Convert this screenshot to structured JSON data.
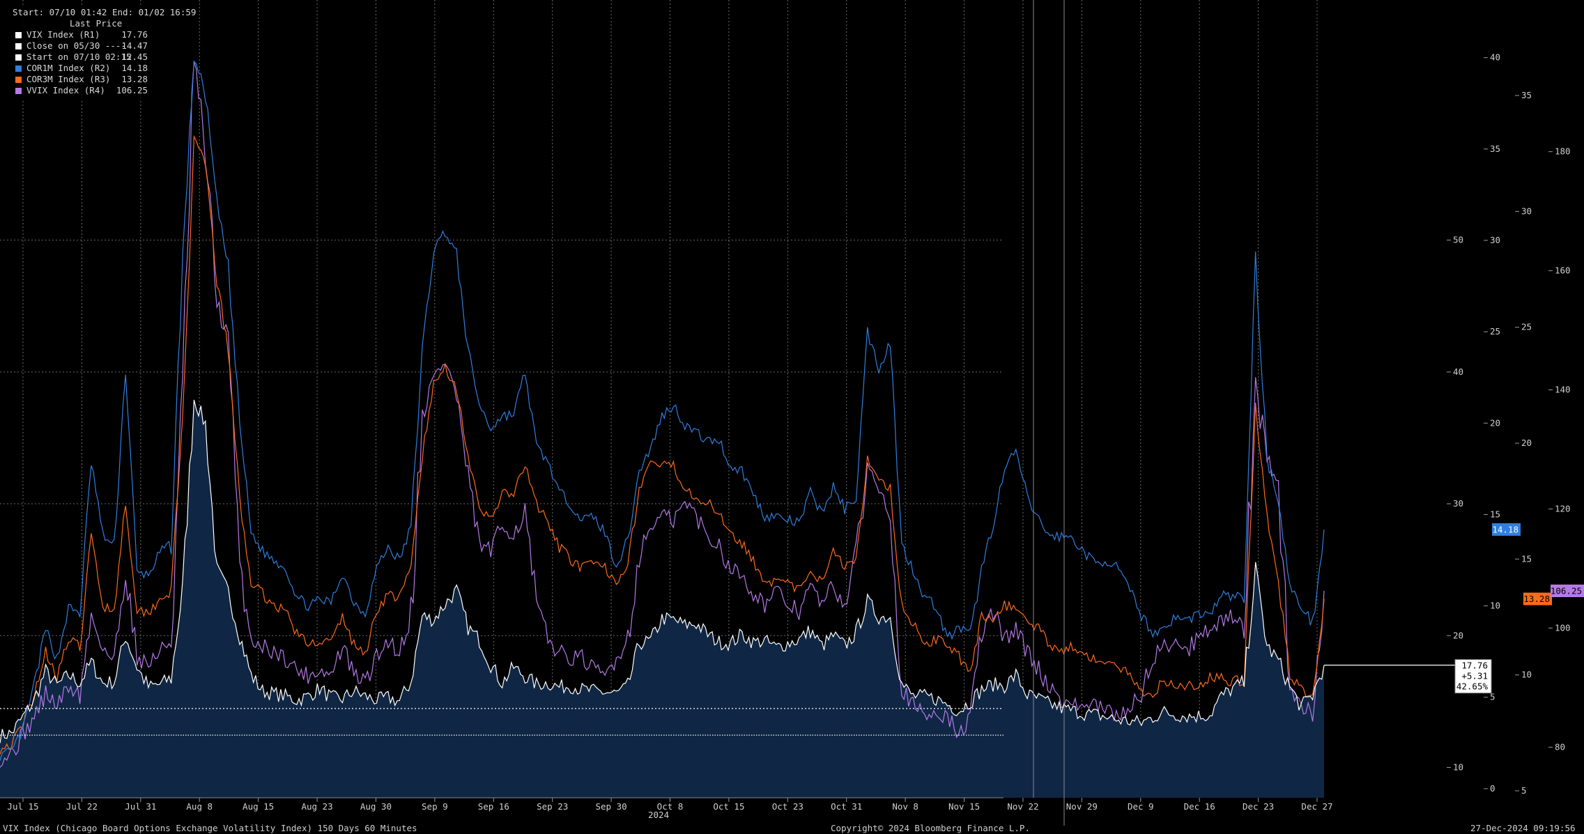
{
  "legend": {
    "header": "Start: 07/10 01:42 End: 01/02 16:59",
    "subheader": "Last Price",
    "items": [
      {
        "name": "VIX Index  (R1)",
        "value": "17.76",
        "color": "#ffffff"
      },
      {
        "name": "Close on 05/30 ----",
        "value": "14.47",
        "color": "#ffffff"
      },
      {
        "name": "Start on 07/10 02:15",
        "value": "12.45",
        "color": "#ffffff"
      },
      {
        "name": "COR1M Index  (R2)",
        "value": "14.18",
        "color": "#2f7fe0"
      },
      {
        "name": "COR3M Index  (R3)",
        "value": "13.28",
        "color": "#ff6a1a"
      },
      {
        "name": "VVIX Index  (R4)",
        "value": "106.25",
        "color": "#b57ae8"
      }
    ]
  },
  "footer": {
    "left": "VIX Index (Chicago Board Options Exchange Volatility Index) 150 Days 60 Minutes",
    "center": "Copyright© 2024 Bloomberg Finance L.P.",
    "right": "27-Dec-2024 09:19:56"
  },
  "year_label": "2024",
  "last_value_box": {
    "line1": "17.76",
    "line2": "+5.31",
    "line3": "42.65%"
  },
  "tags": {
    "cor1m": "14.18",
    "cor3m": "13.28",
    "vvix": "106.25"
  },
  "colors": {
    "background": "#000000",
    "vix_fill": "#0f2744",
    "vix_line": "#ffffff",
    "cor1m": "#2f7fe0",
    "cor3m": "#ff6a1a",
    "vvix": "#b57ae8",
    "grid": "#6a6a6a"
  },
  "chart_data": {
    "type": "line",
    "x_axis": {
      "year": "2024",
      "tick_labels": [
        "Jul 15",
        "Jul 22",
        "Jul 31",
        "Aug 8",
        "Aug 15",
        "Aug 23",
        "Aug 30",
        "Sep 9",
        "Sep 16",
        "Sep 23",
        "Sep 30",
        "Oct 8",
        "Oct 15",
        "Oct 23",
        "Oct 31",
        "Nov 8",
        "Nov 15",
        "Nov 22",
        "Nov 29",
        "Dec 9",
        "Dec 16",
        "Dec 23",
        "Dec 27"
      ]
    },
    "axes": {
      "R1": {
        "ticks": [
          10,
          20,
          30,
          40,
          50
        ],
        "ylim": [
          7.7,
          68
        ]
      },
      "R2": {
        "ticks": [
          0,
          5,
          10,
          15,
          20,
          25,
          30,
          35,
          40
        ],
        "ylim": [
          -0.5,
          43
        ]
      },
      "R3": {
        "ticks": [
          5,
          10,
          15,
          20,
          25,
          30,
          35
        ],
        "ylim": [
          4.7,
          39
        ]
      },
      "R4": {
        "ticks": [
          80,
          100,
          120,
          140,
          160,
          180
        ],
        "ylim": [
          71.5,
          205
        ]
      }
    },
    "reference_lines": [
      {
        "label": "Close on 05/30",
        "value": 14.47,
        "axis": "R1"
      },
      {
        "label": "Start on 07/10 02:15",
        "value": 12.45,
        "axis": "R1"
      }
    ],
    "series": [
      {
        "name": "VIX Index (R1)",
        "axis": "R1",
        "last": 17.76,
        "values": [
          12.4,
          12.6,
          13.8,
          15.1,
          17.3,
          16.2,
          17.0,
          16.4,
          18.0,
          16.4,
          16.5,
          20.0,
          17.6,
          16.1,
          16.3,
          16.8,
          23.5,
          38.0,
          36.0,
          25.0,
          23.3,
          20.0,
          17.0,
          15.8,
          15.6,
          15.4,
          15.1,
          15.4,
          16.0,
          15.3,
          15.2,
          15.8,
          15.4,
          15.1,
          15.3,
          15.0,
          16.5,
          21.5,
          21.2,
          22.4,
          23.4,
          20.6,
          19.7,
          17.8,
          16.4,
          17.6,
          16.9,
          16.3,
          16.4,
          16.1,
          16.2,
          15.9,
          15.8,
          15.7,
          15.6,
          16.1,
          19.4,
          19.6,
          21.3,
          21.2,
          20.8,
          20.9,
          20.1,
          19.5,
          19.4,
          20.1,
          19.5,
          19.6,
          19.1,
          19.4,
          19.7,
          20.4,
          19.2,
          20.0,
          19.2,
          20.2,
          22.6,
          21.4,
          21.4,
          16.3,
          15.4,
          15.4,
          15.2,
          14.8,
          14.3,
          15.0,
          15.9,
          16.3,
          16.2,
          17.0,
          15.5,
          15.2,
          14.8,
          14.5,
          14.3,
          14.1,
          14.0,
          13.8,
          13.6,
          13.5,
          13.4,
          13.8,
          14.2,
          14.0,
          13.9,
          13.9,
          14.0,
          15.4,
          16.0,
          16.5,
          25.0,
          19.2,
          18.1,
          16.1,
          14.6,
          15.5,
          17.76
        ]
      },
      {
        "name": "COR1M Index (R2)",
        "axis": "R2",
        "last": 14.18,
        "values": [
          1.8,
          2.0,
          3.2,
          5.7,
          8.7,
          7.1,
          9.9,
          9.6,
          17.9,
          13.9,
          13.2,
          23.0,
          11.8,
          11.7,
          12.9,
          13.4,
          29.0,
          40.0,
          38.0,
          32.0,
          28.5,
          20.0,
          14.0,
          13.0,
          12.5,
          12.1,
          10.5,
          10.0,
          10.3,
          10.2,
          11.8,
          10.2,
          9.6,
          12.1,
          13.2,
          12.5,
          14.3,
          24.0,
          29.5,
          30.5,
          29.2,
          24.0,
          21.0,
          19.7,
          20.4,
          20.5,
          22.8,
          18.7,
          17.9,
          16.2,
          15.6,
          14.7,
          14.9,
          14.0,
          12.2,
          13.6,
          17.4,
          18.6,
          20.4,
          21.0,
          19.9,
          19.5,
          19.0,
          19.1,
          17.6,
          17.4,
          16.1,
          14.9,
          14.9,
          14.7,
          14.5,
          16.2,
          15.1,
          16.5,
          15.3,
          16.0,
          25.0,
          23.0,
          24.5,
          13.3,
          12.0,
          10.5,
          10.0,
          8.2,
          8.8,
          8.4,
          12.0,
          14.5,
          17.4,
          18.5,
          15.9,
          14.7,
          13.8,
          13.8,
          13.7,
          12.9,
          12.3,
          12.5,
          12.0,
          10.8,
          9.5,
          8.5,
          8.8,
          9.4,
          9.2,
          9.6,
          9.5,
          10.6,
          10.5,
          10.5,
          29.0,
          18.0,
          15.9,
          11.0,
          10.0,
          9.0,
          14.18
        ]
      },
      {
        "name": "COR3M Index (R3)",
        "axis": "R3",
        "last": 13.28,
        "values": [
          6.8,
          7.0,
          7.8,
          9.2,
          11.0,
          10.0,
          11.5,
          11.2,
          16.0,
          13.0,
          12.8,
          17.5,
          12.8,
          12.7,
          13.3,
          13.6,
          21.0,
          33.0,
          32.0,
          27.0,
          24.0,
          17.5,
          14.0,
          13.5,
          13.0,
          12.8,
          11.8,
          11.3,
          11.5,
          11.4,
          12.5,
          11.3,
          10.9,
          12.8,
          13.5,
          13.3,
          14.6,
          19.5,
          22.5,
          23.3,
          22.4,
          19.5,
          17.0,
          16.8,
          17.8,
          17.8,
          19.0,
          17.4,
          16.5,
          15.5,
          15.0,
          14.6,
          14.8,
          14.6,
          14.1,
          14.8,
          18.0,
          19.2,
          19.0,
          19.0,
          18.1,
          17.7,
          17.4,
          17.0,
          16.2,
          15.7,
          14.9,
          14.1,
          14.0,
          13.9,
          13.7,
          14.3,
          14.0,
          15.5,
          14.7,
          15.1,
          19.3,
          18.6,
          18.0,
          13.0,
          12.2,
          11.4,
          11.5,
          11.4,
          10.8,
          10.0,
          12.5,
          12.5,
          13.0,
          12.9,
          12.3,
          12.0,
          11.3,
          11.1,
          11.2,
          11.0,
          10.6,
          10.5,
          10.3,
          10.0,
          9.3,
          9.2,
          9.8,
          9.5,
          9.6,
          9.4,
          9.9,
          9.9,
          9.7,
          9.8,
          21.5,
          16.8,
          14.0,
          10.0,
          9.5,
          9.0,
          13.28
        ]
      },
      {
        "name": "VVIX Index (R4)",
        "axis": "R4",
        "last": 106.25,
        "values": [
          78.0,
          79.0,
          82.0,
          85.0,
          89.0,
          87.0,
          90.0,
          89.0,
          102.0,
          97.0,
          94.0,
          110.0,
          95.0,
          94.0,
          96.0,
          98.0,
          140.0,
          195.0,
          180.0,
          155.0,
          148.0,
          110.0,
          98.0,
          97.0,
          96.0,
          95.0,
          93.0,
          92.0,
          93.0,
          92.0,
          97.0,
          92.0,
          91.0,
          95.0,
          98.0,
          96.0,
          102.0,
          136.0,
          142.0,
          145.0,
          139.0,
          125.0,
          114.0,
          113.0,
          117.0,
          116.0,
          119.0,
          104.0,
          98.0,
          96.0,
          95.0,
          95.0,
          93.0,
          92.0,
          95.0,
          98.0,
          112.0,
          117.0,
          119.0,
          118.0,
          121.0,
          119.0,
          115.0,
          114.0,
          110.0,
          109.0,
          106.0,
          104.0,
          106.0,
          104.0,
          103.0,
          107.0,
          104.0,
          107.0,
          104.0,
          112.0,
          127.0,
          124.0,
          120.0,
          90.0,
          87.0,
          85.0,
          86.0,
          85.0,
          82.0,
          85.0,
          99.0,
          103.0,
          98.0,
          100.0,
          96.0,
          93.0,
          90.0,
          88.0,
          87.0,
          87.0,
          87.0,
          86.0,
          85.0,
          87.0,
          89.0,
          95.0,
          97.0,
          98.0,
          96.0,
          99.0,
          100.0,
          101.0,
          102.0,
          102.0,
          140.0,
          129.0,
          124.0,
          89.0,
          87.0,
          86.0,
          106.25
        ]
      }
    ]
  }
}
